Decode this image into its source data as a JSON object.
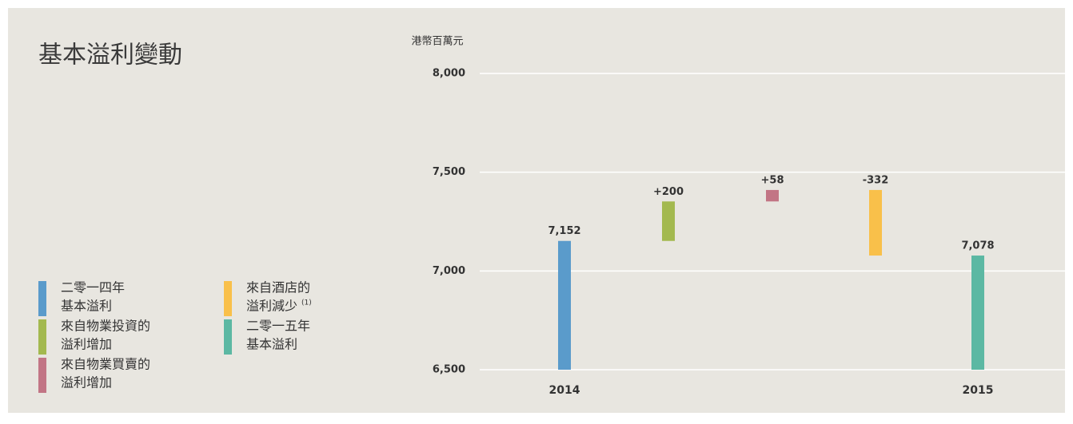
{
  "chart_data": {
    "type": "waterfall",
    "title": "基本溢利變動",
    "y_label": "港幣百萬元",
    "categories": [
      "2014",
      null,
      null,
      null,
      "2015"
    ],
    "measure": [
      "absolute",
      "relative",
      "relative",
      "relative",
      "absolute"
    ],
    "values": [
      7152,
      200,
      58,
      -332,
      7078
    ],
    "value_labels": [
      "7,152",
      "+200",
      "+58",
      "-332",
      "7,078"
    ],
    "colors": [
      "#5a9bcb",
      "#a3b94f",
      "#c27585",
      "#f9c04a",
      "#5cb8a3"
    ],
    "ylim": [
      6500,
      8000
    ],
    "yticks": [
      {
        "value": 6500,
        "label": "6,500"
      },
      {
        "value": 7000,
        "label": "7,000"
      },
      {
        "value": 7500,
        "label": "7,500"
      },
      {
        "value": 8000,
        "label": "8,000"
      }
    ],
    "grid": true,
    "legend": [
      {
        "lines": [
          "二零一四年",
          "基本溢利"
        ]
      },
      {
        "lines": [
          "來自物業投資的",
          "溢利增加"
        ]
      },
      {
        "lines": [
          "來自物業買賣的",
          "溢利增加"
        ]
      },
      {
        "lines": [
          "來自酒店的",
          "溢利減少"
        ],
        "sup": "(1)"
      },
      {
        "lines": [
          "二零一五年",
          "基本溢利"
        ]
      }
    ]
  }
}
